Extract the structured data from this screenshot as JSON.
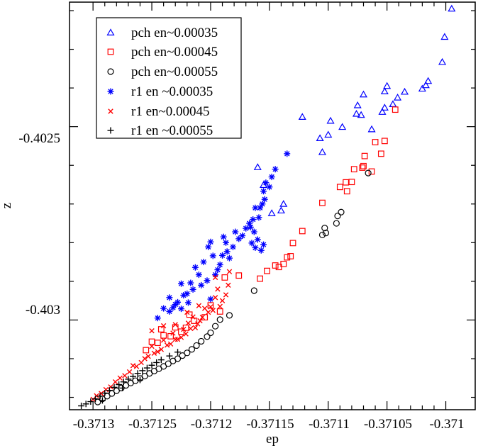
{
  "chart_data": {
    "type": "scatter",
    "title": "",
    "xlabel": "ep",
    "ylabel": "z",
    "xlim": [
      -37132,
      -37097.5
    ],
    "ylim": [
      -40323.2,
      -40217.8
    ],
    "value_scale": 1e-05,
    "x_ticks": [
      -37130,
      -37125,
      -37120,
      -37115,
      -37110,
      -37105,
      -37100
    ],
    "x_tick_labels": [
      "-0.3713",
      "-0.37125",
      "-0.3712",
      "-0.37115",
      "-0.3711",
      "-0.37105",
      "-0.371"
    ],
    "y_ticks": [
      -40250,
      -40300
    ],
    "y_tick_labels": [
      "-0.4025",
      "-0.403"
    ],
    "legend_position": "top-left",
    "series": [
      {
        "name": "pch en~0.00035",
        "marker": "triangle",
        "color": "#0000ff",
        "points": [
          [
            -37099.5,
            -40219.5
          ],
          [
            -37100.1,
            -40226.8
          ],
          [
            -37100.3,
            -40233.3
          ],
          [
            -37101.5,
            -40238.2
          ],
          [
            -37101.7,
            -40239.3
          ],
          [
            -37102.0,
            -40240.2
          ],
          [
            -37103.5,
            -40241.0
          ],
          [
            -37104.1,
            -40242.5
          ],
          [
            -37104.5,
            -40244.2
          ],
          [
            -37105.0,
            -40239.5
          ],
          [
            -37105.2,
            -40240.9
          ],
          [
            -37105.2,
            -40245.1
          ],
          [
            -37105.4,
            -40246.2
          ],
          [
            -37106.3,
            -40250.7
          ],
          [
            -37107.0,
            -40241.7
          ],
          [
            -37107.2,
            -40247.0
          ],
          [
            -37107.5,
            -40244.5
          ],
          [
            -37107.6,
            -40246.7
          ],
          [
            -37108.8,
            -40250.1
          ],
          [
            -37109.8,
            -40248.5
          ],
          [
            -37110.0,
            -40252.1
          ],
          [
            -37110.5,
            -40256.6
          ],
          [
            -37110.7,
            -40253.0
          ],
          [
            -37112.2,
            -40247.5
          ],
          [
            -37113.8,
            -40270.0
          ],
          [
            -37114.0,
            -40271.7
          ],
          [
            -37114.8,
            -40272.4
          ],
          [
            -37115.5,
            -40265.1
          ],
          [
            -37116.0,
            -40260.5
          ]
        ]
      },
      {
        "name": "pch en~0.00045",
        "marker": "square",
        "color": "#ff0000",
        "points": [
          [
            -37104.3,
            -40245.6
          ],
          [
            -37105.2,
            -40253.7
          ],
          [
            -37105.5,
            -40257.0
          ],
          [
            -37106.0,
            -40254.0
          ],
          [
            -37106.3,
            -40261.6
          ],
          [
            -37106.9,
            -40257.6
          ],
          [
            -37107.0,
            -40260.2
          ],
          [
            -37107.1,
            -40260.6
          ],
          [
            -37107.8,
            -40261.0
          ],
          [
            -37108.0,
            -40264.3
          ],
          [
            -37108.4,
            -40266.7
          ],
          [
            -37108.5,
            -40264.4
          ],
          [
            -37109.0,
            -40265.6
          ],
          [
            -37110.5,
            -40269.7
          ],
          [
            -37112.2,
            -40277.0
          ],
          [
            -37113.0,
            -40280.1
          ],
          [
            -37113.2,
            -40283.5
          ],
          [
            -37113.5,
            -40283.8
          ],
          [
            -37113.8,
            -40285.5
          ],
          [
            -37114.2,
            -40286.3
          ],
          [
            -37114.5,
            -40285.9
          ],
          [
            -37115.2,
            -40287.3
          ],
          [
            -37115.8,
            -40289.3
          ],
          [
            -37117.6,
            -40288.5
          ],
          [
            -37118.8,
            -40289.0
          ],
          [
            -37119.2,
            -40297.8
          ],
          [
            -37120.0,
            -40296.2
          ],
          [
            -37120.5,
            -40299.3
          ],
          [
            -37121.4,
            -40300.2
          ],
          [
            -37121.8,
            -40298.6
          ],
          [
            -37122.1,
            -40302.0
          ],
          [
            -37122.5,
            -40303.0
          ],
          [
            -37123.0,
            -40301.9
          ],
          [
            -37123.4,
            -40304.2
          ],
          [
            -37124.0,
            -40304.0
          ],
          [
            -37124.2,
            -40302.4
          ],
          [
            -37124.5,
            -40305.9
          ],
          [
            -37125.0,
            -40305.6
          ],
          [
            -37125.5,
            -40307.8
          ]
        ]
      },
      {
        "name": "pch en~0.00055",
        "marker": "circle",
        "color": "#000000",
        "points": [
          [
            -37106.6,
            -40262.0
          ],
          [
            -37108.9,
            -40272.1
          ],
          [
            -37109.2,
            -40273.1
          ],
          [
            -37109.3,
            -40275.0
          ],
          [
            -37110.2,
            -40277.5
          ],
          [
            -37110.3,
            -40276.2
          ],
          [
            -37110.5,
            -40278.0
          ],
          [
            -37116.3,
            -40292.4
          ],
          [
            -37118.4,
            -40298.8
          ],
          [
            -37119.2,
            -40299.9
          ],
          [
            -37119.6,
            -40301.6
          ],
          [
            -37120.0,
            -40303.3
          ],
          [
            -37120.3,
            -40304.3
          ],
          [
            -37120.8,
            -40305.5
          ],
          [
            -37121.2,
            -40306.6
          ],
          [
            -37121.6,
            -40307.6
          ],
          [
            -37122.0,
            -40308.5
          ],
          [
            -37122.4,
            -40309.2
          ],
          [
            -37122.8,
            -40310.0
          ],
          [
            -37123.2,
            -40310.6
          ],
          [
            -37123.6,
            -40311.3
          ],
          [
            -37124.0,
            -40312.0
          ],
          [
            -37124.4,
            -40312.6
          ],
          [
            -37124.8,
            -40313.2
          ],
          [
            -37125.2,
            -40313.8
          ],
          [
            -37125.6,
            -40314.5
          ],
          [
            -37126.0,
            -40315.1
          ],
          [
            -37126.4,
            -40315.7
          ],
          [
            -37126.8,
            -40316.3
          ],
          [
            -37127.2,
            -40316.9
          ],
          [
            -37127.6,
            -40317.6
          ],
          [
            -37128.0,
            -40318.3
          ],
          [
            -37128.4,
            -40319.0
          ],
          [
            -37128.8,
            -40319.7
          ],
          [
            -37129.2,
            -40320.4
          ],
          [
            -37129.6,
            -40321.2
          ]
        ]
      },
      {
        "name": "r1 en ~0.00035",
        "marker": "asterisk",
        "color": "#0000ff",
        "points": [
          [
            -37113.5,
            -40257.0
          ],
          [
            -37114.5,
            -40261.0
          ],
          [
            -37114.8,
            -40263.0
          ],
          [
            -37115.0,
            -40265.6
          ],
          [
            -37115.3,
            -40264.5
          ],
          [
            -37115.5,
            -40266.7
          ],
          [
            -37115.4,
            -40268.8
          ],
          [
            -37115.6,
            -40270.0
          ],
          [
            -37115.8,
            -40271.0
          ],
          [
            -37115.9,
            -40273.5
          ],
          [
            -37116.2,
            -40271.0
          ],
          [
            -37116.4,
            -40274.0
          ],
          [
            -37116.6,
            -40276.0
          ],
          [
            -37116.3,
            -40277.2
          ],
          [
            -37116.0,
            -40279.2
          ],
          [
            -37115.5,
            -40280.5
          ],
          [
            -37115.7,
            -40282.0
          ],
          [
            -37116.2,
            -40281.3
          ],
          [
            -37116.5,
            -40280.1
          ],
          [
            -37116.7,
            -40275.0
          ],
          [
            -37117.0,
            -40276.3
          ],
          [
            -37117.3,
            -40278.2
          ],
          [
            -37117.6,
            -40279.0
          ],
          [
            -37117.9,
            -40277.2
          ],
          [
            -37118.1,
            -40281.1
          ],
          [
            -37118.4,
            -40284.0
          ],
          [
            -37118.6,
            -40282.3
          ],
          [
            -37118.7,
            -40280.0
          ],
          [
            -37118.9,
            -40278.5
          ],
          [
            -37119.0,
            -40283.3
          ],
          [
            -37119.2,
            -40285.7
          ],
          [
            -37119.4,
            -40287.0
          ],
          [
            -37119.6,
            -40288.3
          ],
          [
            -37119.8,
            -40283.4
          ],
          [
            -37120.0,
            -40279.8
          ],
          [
            -37120.2,
            -40281.1
          ],
          [
            -37120.3,
            -40289.8
          ],
          [
            -37120.6,
            -40285.0
          ],
          [
            -37120.8,
            -40291.0
          ],
          [
            -37121.0,
            -40288.3
          ],
          [
            -37121.3,
            -40286.4
          ],
          [
            -37121.5,
            -40292.1
          ],
          [
            -37121.7,
            -40290.4
          ],
          [
            -37121.9,
            -40295.5
          ],
          [
            -37122.0,
            -40293.2
          ],
          [
            -37122.3,
            -40293.6
          ],
          [
            -37122.5,
            -40297.1
          ],
          [
            -37122.8,
            -40295.4
          ],
          [
            -37123.0,
            -40296.0
          ],
          [
            -37123.2,
            -40296.8
          ],
          [
            -37123.5,
            -40297.8
          ],
          [
            -37124.0,
            -40297.0
          ],
          [
            -37124.5,
            -40299.5
          ],
          [
            -37120.0,
            -40294.6
          ],
          [
            -37122.5,
            -40290.6
          ],
          [
            -37123.5,
            -40294.2
          ]
        ]
      },
      {
        "name": "r1 en~0.00045",
        "marker": "x",
        "color": "#ff0000",
        "points": [
          [
            -37118.4,
            -40287.5
          ],
          [
            -37118.5,
            -40291.0
          ],
          [
            -37118.7,
            -40293.5
          ],
          [
            -37119.0,
            -40295.0
          ],
          [
            -37119.2,
            -40296.5
          ],
          [
            -37119.4,
            -40292.0
          ],
          [
            -37119.6,
            -40294.2
          ],
          [
            -37119.8,
            -40297.5
          ],
          [
            -37120.0,
            -40296.6
          ],
          [
            -37120.2,
            -40298.0
          ],
          [
            -37120.5,
            -40297.0
          ],
          [
            -37120.7,
            -40299.3
          ],
          [
            -37120.9,
            -40300.2
          ],
          [
            -37121.1,
            -40301.0
          ],
          [
            -37121.3,
            -40302.0
          ],
          [
            -37121.5,
            -40299.2
          ],
          [
            -37121.7,
            -40302.2
          ],
          [
            -37121.9,
            -40300.8
          ],
          [
            -37122.1,
            -40303.6
          ],
          [
            -37122.3,
            -40302.4
          ],
          [
            -37122.5,
            -40304.5
          ],
          [
            -37122.8,
            -40305.0
          ],
          [
            -37123.0,
            -40305.0
          ],
          [
            -37123.2,
            -40303.4
          ],
          [
            -37123.4,
            -40306.2
          ],
          [
            -37123.7,
            -40306.5
          ],
          [
            -37124.0,
            -40305.2
          ],
          [
            -37124.2,
            -40307.6
          ],
          [
            -37124.5,
            -40308.2
          ],
          [
            -37124.8,
            -40308.6
          ],
          [
            -37125.0,
            -40306.8
          ],
          [
            -37125.3,
            -40309.4
          ],
          [
            -37125.6,
            -40310.0
          ],
          [
            -37125.9,
            -40311.0
          ],
          [
            -37126.3,
            -40312.0
          ],
          [
            -37126.6,
            -40311.8
          ],
          [
            -37126.9,
            -40313.4
          ],
          [
            -37127.3,
            -40314.4
          ],
          [
            -37127.7,
            -40315.0
          ],
          [
            -37128.1,
            -40316.0
          ],
          [
            -37128.5,
            -40317.3
          ],
          [
            -37128.9,
            -40318.0
          ],
          [
            -37129.3,
            -40319.0
          ],
          [
            -37129.7,
            -40319.6
          ],
          [
            -37130.0,
            -40320.5
          ],
          [
            -37125.0,
            -40302.8
          ],
          [
            -37124.0,
            -40301.5
          ],
          [
            -37122.0,
            -40298.0
          ],
          [
            -37119.6,
            -40289.0
          ],
          [
            -37121.0,
            -40296.3
          ],
          [
            -37123.0,
            -40301.2
          ]
        ]
      },
      {
        "name": "r1 en ~0.00055",
        "marker": "plus",
        "color": "#000000",
        "points": [
          [
            -37124.2,
            -40310.3
          ],
          [
            -37124.6,
            -40311.0
          ],
          [
            -37125.0,
            -40311.7
          ],
          [
            -37125.4,
            -40312.4
          ],
          [
            -37125.8,
            -40313.1
          ],
          [
            -37126.2,
            -40313.8
          ],
          [
            -37126.6,
            -40314.6
          ],
          [
            -37127.0,
            -40315.3
          ],
          [
            -37127.4,
            -40316.0
          ],
          [
            -37127.8,
            -40316.7
          ],
          [
            -37128.2,
            -40317.4
          ],
          [
            -37128.6,
            -40318.2
          ],
          [
            -37129.0,
            -40318.9
          ],
          [
            -37129.4,
            -40319.7
          ],
          [
            -37129.8,
            -40320.4
          ],
          [
            -37130.2,
            -40321.1
          ],
          [
            -37130.6,
            -40321.7
          ],
          [
            -37131.0,
            -40322.2
          ],
          [
            -37126.0,
            -40315.5
          ],
          [
            -37127.5,
            -40317.6
          ],
          [
            -37129.2,
            -40320.8
          ],
          [
            -37123.5,
            -40309.3
          ],
          [
            -37122.8,
            -40308.3
          ]
        ]
      }
    ]
  }
}
